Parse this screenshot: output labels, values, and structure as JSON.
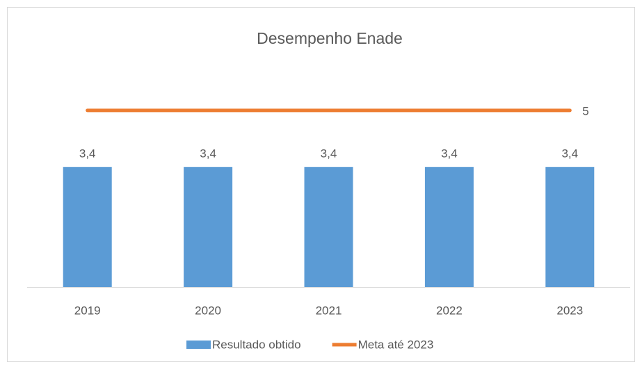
{
  "chart_data": {
    "type": "combo",
    "title": "Desempenho Enade",
    "categories": [
      "2019",
      "2020",
      "2021",
      "2022",
      "2023"
    ],
    "ylim": [
      0,
      6
    ],
    "series": [
      {
        "name": "Resultado obtido",
        "type": "bar",
        "color": "#5b9bd5",
        "values": [
          3.4,
          3.4,
          3.4,
          3.4,
          3.4
        ],
        "value_labels": [
          "3,4",
          "3,4",
          "3,4",
          "3,4",
          "3,4"
        ]
      },
      {
        "name": "Meta até 2023",
        "type": "line",
        "color": "#ed7d31",
        "values": [
          5,
          5,
          5,
          5,
          5
        ],
        "value_labels": [
          null,
          null,
          null,
          null,
          "5"
        ]
      }
    ]
  }
}
